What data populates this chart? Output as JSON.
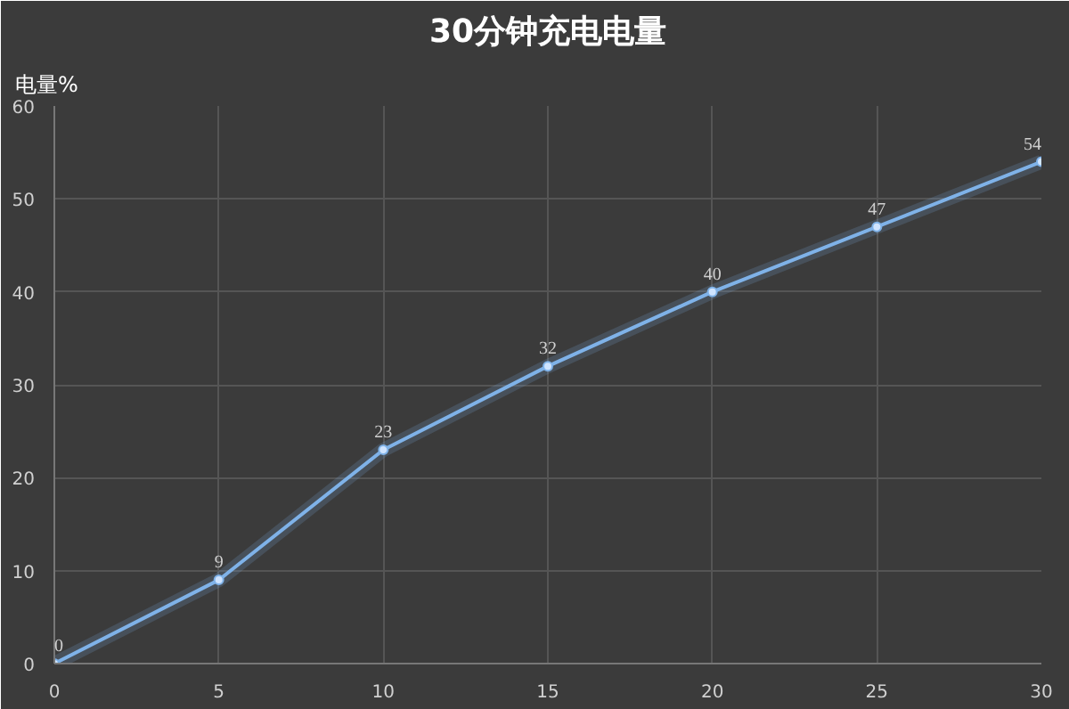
{
  "chart_data": {
    "type": "line",
    "title": "30分钟充电电量",
    "ylabel": "电量%",
    "x": [
      0,
      5,
      10,
      15,
      20,
      25,
      30
    ],
    "series": [
      {
        "color": "#7fb2e8",
        "values": [
          0,
          9,
          23,
          32,
          40,
          47,
          54
        ]
      }
    ],
    "xlim": [
      0,
      30
    ],
    "ylim": [
      0,
      60
    ],
    "xticks": [
      0,
      5,
      10,
      15,
      20,
      25,
      30
    ],
    "yticks": [
      0,
      10,
      20,
      30,
      40,
      50,
      60
    ],
    "grid": true,
    "marker": "circle",
    "line_style": "solid",
    "data_labels": true
  }
}
